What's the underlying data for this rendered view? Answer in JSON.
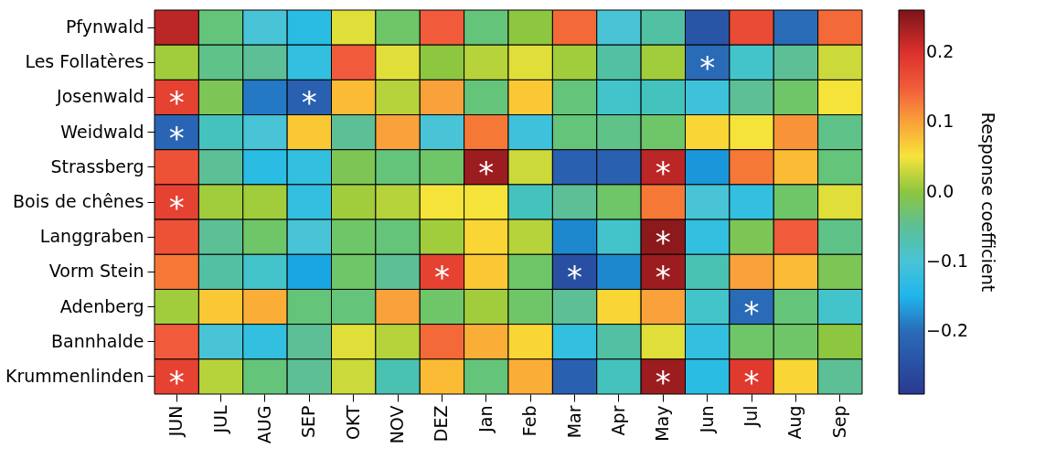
{
  "chart_data": {
    "type": "heatmap",
    "clabel": "Response coefficient",
    "categories": [
      "JUN",
      "JUL",
      "AUG",
      "SEP",
      "OKT",
      "NOV",
      "DEZ",
      "Jan",
      "Feb",
      "Mar",
      "Apr",
      "May",
      "Jun",
      "Jul",
      "Aug",
      "Sep"
    ],
    "y_categories": [
      "Pfynwald",
      "Les Follatères",
      "Josenwald",
      "Weidwald",
      "Strassberg",
      "Bois de chênes",
      "Langgraben",
      "Vorm Stein",
      "Adenberg",
      "Bannhalde",
      "Krummenlinden"
    ],
    "cells": [
      [
        0.22,
        -0.03,
        -0.1,
        -0.13,
        0.04,
        -0.02,
        0.15,
        -0.03,
        0.0,
        0.14,
        -0.1,
        -0.06,
        -0.24,
        0.17,
        -0.2,
        0.14
      ],
      [
        0.01,
        -0.04,
        -0.05,
        -0.12,
        0.15,
        0.04,
        0.0,
        0.02,
        0.04,
        0.01,
        -0.06,
        0.01,
        -0.2,
        -0.09,
        -0.05,
        0.03
      ],
      [
        0.18,
        -0.01,
        -0.19,
        -0.22,
        0.08,
        0.02,
        0.1,
        -0.03,
        0.07,
        -0.03,
        -0.09,
        -0.08,
        -0.11,
        -0.05,
        -0.02,
        0.05
      ],
      [
        -0.21,
        -0.08,
        -0.1,
        0.07,
        -0.05,
        0.1,
        -0.1,
        0.13,
        -0.11,
        -0.03,
        -0.04,
        -0.02,
        0.06,
        0.05,
        0.11,
        -0.04
      ],
      [
        0.16,
        -0.05,
        -0.13,
        -0.12,
        -0.01,
        -0.03,
        -0.02,
        0.24,
        0.03,
        -0.22,
        -0.22,
        0.22,
        -0.17,
        0.13,
        0.08,
        -0.03
      ],
      [
        0.18,
        0.01,
        0.01,
        -0.12,
        0.01,
        0.02,
        0.05,
        0.05,
        -0.08,
        -0.05,
        -0.02,
        0.13,
        -0.1,
        -0.12,
        -0.02,
        0.04
      ],
      [
        0.16,
        -0.05,
        -0.02,
        -0.1,
        -0.02,
        -0.03,
        0.01,
        0.06,
        0.02,
        -0.18,
        -0.09,
        0.25,
        -0.12,
        -0.01,
        0.15,
        -0.04
      ],
      [
        0.13,
        -0.06,
        -0.09,
        -0.16,
        -0.02,
        -0.05,
        0.18,
        0.07,
        -0.02,
        -0.25,
        -0.18,
        0.24,
        -0.07,
        0.1,
        0.08,
        -0.01
      ],
      [
        0.01,
        0.07,
        0.09,
        -0.03,
        -0.03,
        0.1,
        -0.02,
        0.01,
        -0.02,
        -0.05,
        0.06,
        0.1,
        -0.09,
        -0.2,
        -0.03,
        -0.09
      ],
      [
        0.15,
        -0.1,
        -0.12,
        -0.05,
        0.04,
        0.02,
        0.14,
        0.09,
        0.06,
        -0.12,
        -0.06,
        0.04,
        -0.12,
        -0.02,
        -0.02,
        0.0
      ],
      [
        0.18,
        0.02,
        -0.03,
        -0.05,
        0.03,
        -0.07,
        0.08,
        -0.03,
        0.09,
        -0.22,
        -0.08,
        0.24,
        -0.13,
        0.19,
        0.06,
        -0.05
      ]
    ],
    "clim": [
      -0.29,
      0.26
    ],
    "cticks": [
      {
        "value": -0.2,
        "label": "−0.2"
      },
      {
        "value": -0.1,
        "label": "−0.1"
      },
      {
        "value": 0,
        "label": "0.0"
      },
      0.1,
      0.2
    ],
    "cell_labels": [
      [
        null,
        null,
        null,
        null,
        null,
        null,
        null,
        null,
        null,
        null,
        null,
        null,
        null,
        null,
        null,
        null
      ],
      [
        null,
        null,
        null,
        null,
        null,
        null,
        null,
        null,
        null,
        null,
        null,
        null,
        "*",
        null,
        null,
        null
      ],
      [
        "*",
        null,
        null,
        "*",
        null,
        null,
        null,
        null,
        null,
        null,
        null,
        null,
        null,
        null,
        null,
        null
      ],
      [
        "*",
        null,
        null,
        null,
        null,
        null,
        null,
        null,
        null,
        null,
        null,
        null,
        null,
        null,
        null,
        null
      ],
      [
        null,
        null,
        null,
        null,
        null,
        null,
        null,
        "*",
        null,
        null,
        null,
        "*",
        null,
        null,
        null,
        null
      ],
      [
        "*",
        null,
        null,
        null,
        null,
        null,
        null,
        null,
        null,
        null,
        null,
        null,
        null,
        null,
        null,
        null
      ],
      [
        null,
        null,
        null,
        null,
        null,
        null,
        null,
        null,
        null,
        null,
        null,
        "*",
        null,
        null,
        null,
        null
      ],
      [
        null,
        null,
        null,
        null,
        null,
        null,
        "*",
        null,
        null,
        "*",
        null,
        "*",
        null,
        null,
        null,
        null
      ],
      [
        null,
        null,
        null,
        null,
        null,
        null,
        null,
        null,
        null,
        null,
        null,
        null,
        null,
        "*",
        null,
        null
      ],
      [
        null,
        null,
        null,
        null,
        null,
        null,
        null,
        null,
        null,
        null,
        null,
        null,
        null,
        null,
        null,
        null
      ],
      [
        "*",
        null,
        null,
        null,
        null,
        null,
        null,
        null,
        null,
        null,
        null,
        "*",
        null,
        "*",
        null,
        null
      ]
    ]
  }
}
